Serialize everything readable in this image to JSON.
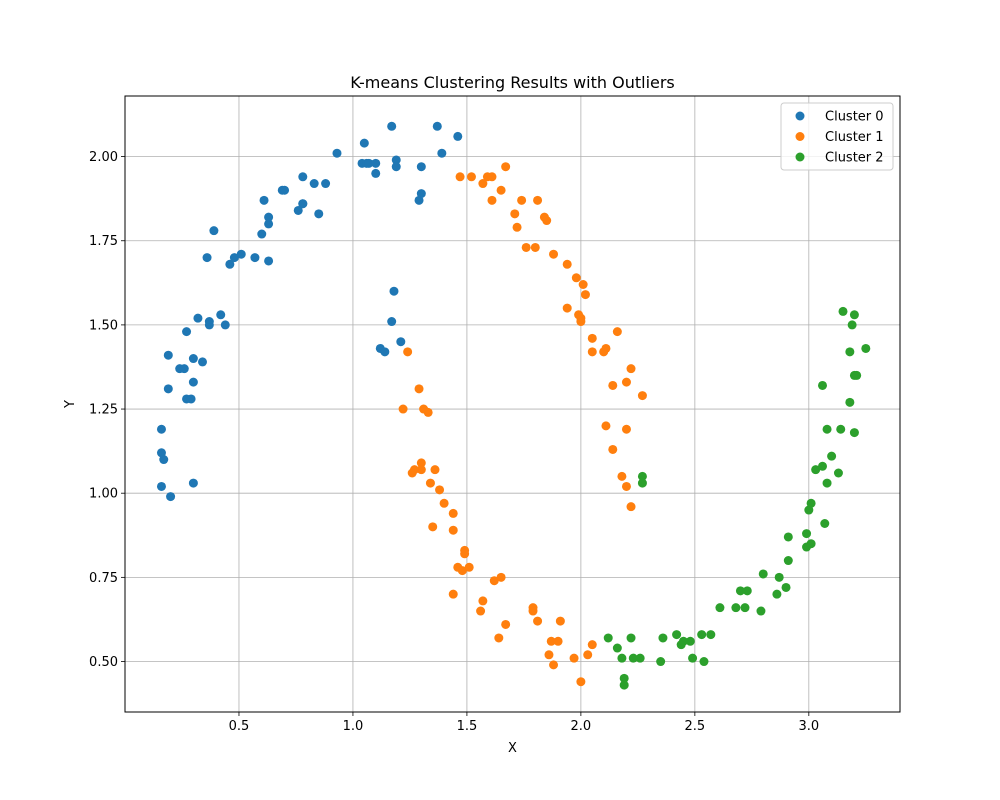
{
  "chart_data": {
    "type": "scatter",
    "title": "K-means Clustering Results with Outliers",
    "xlabel": "X",
    "ylabel": "Y",
    "xlim": [
      0.0,
      3.4
    ],
    "ylim": [
      0.35,
      2.18
    ],
    "xticks": [
      0.5,
      1.0,
      1.5,
      2.0,
      2.5,
      3.0
    ],
    "xtick_labels": [
      "0.5",
      "1.0",
      "1.5",
      "2.0",
      "2.5",
      "3.0"
    ],
    "yticks": [
      0.5,
      0.75,
      1.0,
      1.25,
      1.5,
      1.75,
      2.0
    ],
    "ytick_labels": [
      "0.50",
      "0.75",
      "1.00",
      "1.25",
      "1.50",
      "1.75",
      "2.00"
    ],
    "grid": true,
    "legend_position": "top-right",
    "series": [
      {
        "name": "Cluster 0",
        "color": "#1f77b4",
        "points": [
          [
            0.16,
            1.02
          ],
          [
            0.17,
            1.1
          ],
          [
            0.16,
            1.12
          ],
          [
            0.16,
            1.19
          ],
          [
            0.2,
            0.99
          ],
          [
            0.3,
            1.03
          ],
          [
            0.19,
            1.31
          ],
          [
            0.19,
            1.41
          ],
          [
            0.24,
            1.37
          ],
          [
            0.26,
            1.37
          ],
          [
            0.27,
            1.28
          ],
          [
            0.29,
            1.28
          ],
          [
            0.3,
            1.33
          ],
          [
            0.3,
            1.4
          ],
          [
            0.34,
            1.39
          ],
          [
            0.27,
            1.48
          ],
          [
            0.32,
            1.52
          ],
          [
            0.37,
            1.51
          ],
          [
            0.37,
            1.5
          ],
          [
            0.42,
            1.53
          ],
          [
            0.44,
            1.5
          ],
          [
            0.36,
            1.7
          ],
          [
            0.46,
            1.68
          ],
          [
            0.48,
            1.7
          ],
          [
            0.51,
            1.71
          ],
          [
            0.57,
            1.7
          ],
          [
            0.63,
            1.69
          ],
          [
            0.39,
            1.78
          ],
          [
            0.6,
            1.77
          ],
          [
            0.63,
            1.8
          ],
          [
            0.63,
            1.82
          ],
          [
            0.61,
            1.87
          ],
          [
            0.69,
            1.9
          ],
          [
            0.7,
            1.9
          ],
          [
            0.76,
            1.84
          ],
          [
            0.78,
            1.86
          ],
          [
            0.78,
            1.86
          ],
          [
            0.78,
            1.94
          ],
          [
            0.83,
            1.92
          ],
          [
            0.85,
            1.83
          ],
          [
            0.88,
            1.92
          ],
          [
            0.93,
            2.01
          ],
          [
            1.04,
            1.98
          ],
          [
            1.06,
            1.98
          ],
          [
            1.07,
            1.98
          ],
          [
            1.1,
            1.95
          ],
          [
            1.1,
            1.98
          ],
          [
            1.05,
            2.04
          ],
          [
            1.17,
            2.09
          ],
          [
            1.19,
            1.99
          ],
          [
            1.19,
            1.97
          ],
          [
            1.29,
            1.87
          ],
          [
            1.3,
            1.89
          ],
          [
            1.3,
            1.97
          ],
          [
            1.37,
            2.09
          ],
          [
            1.39,
            2.01
          ],
          [
            1.46,
            2.06
          ],
          [
            1.17,
            1.51
          ],
          [
            1.18,
            1.6
          ],
          [
            1.21,
            1.45
          ],
          [
            1.12,
            1.43
          ],
          [
            1.14,
            1.42
          ]
        ]
      },
      {
        "name": "Cluster 1",
        "color": "#ff7f0e",
        "points": [
          [
            1.47,
            1.94
          ],
          [
            1.52,
            1.94
          ],
          [
            1.57,
            1.92
          ],
          [
            1.59,
            1.94
          ],
          [
            1.61,
            1.94
          ],
          [
            1.61,
            1.87
          ],
          [
            1.65,
            1.9
          ],
          [
            1.67,
            1.97
          ],
          [
            1.71,
            1.83
          ],
          [
            1.72,
            1.79
          ],
          [
            1.74,
            1.87
          ],
          [
            1.76,
            1.73
          ],
          [
            1.8,
            1.73
          ],
          [
            1.81,
            1.87
          ],
          [
            1.84,
            1.82
          ],
          [
            1.85,
            1.81
          ],
          [
            1.88,
            1.71
          ],
          [
            1.94,
            1.68
          ],
          [
            1.98,
            1.64
          ],
          [
            2.01,
            1.62
          ],
          [
            2.02,
            1.59
          ],
          [
            1.94,
            1.55
          ],
          [
            1.99,
            1.53
          ],
          [
            2.0,
            1.52
          ],
          [
            2.0,
            1.51
          ],
          [
            2.05,
            1.46
          ],
          [
            2.05,
            1.42
          ],
          [
            2.1,
            1.42
          ],
          [
            2.11,
            1.43
          ],
          [
            2.16,
            1.48
          ],
          [
            2.14,
            1.32
          ],
          [
            2.2,
            1.33
          ],
          [
            2.22,
            1.37
          ],
          [
            2.27,
            1.29
          ],
          [
            2.11,
            1.2
          ],
          [
            2.2,
            1.19
          ],
          [
            2.14,
            1.13
          ],
          [
            2.18,
            1.05
          ],
          [
            2.2,
            1.02
          ],
          [
            2.22,
            0.96
          ],
          [
            1.24,
            1.42
          ],
          [
            1.29,
            1.31
          ],
          [
            1.22,
            1.25
          ],
          [
            1.31,
            1.25
          ],
          [
            1.33,
            1.24
          ],
          [
            1.3,
            1.09
          ],
          [
            1.3,
            1.07
          ],
          [
            1.27,
            1.07
          ],
          [
            1.26,
            1.06
          ],
          [
            1.36,
            1.07
          ],
          [
            1.34,
            1.03
          ],
          [
            1.38,
            1.01
          ],
          [
            1.4,
            0.97
          ],
          [
            1.44,
            0.94
          ],
          [
            1.35,
            0.9
          ],
          [
            1.44,
            0.89
          ],
          [
            1.49,
            0.83
          ],
          [
            1.49,
            0.82
          ],
          [
            1.46,
            0.78
          ],
          [
            1.48,
            0.77
          ],
          [
            1.51,
            0.78
          ],
          [
            1.44,
            0.7
          ],
          [
            1.57,
            0.68
          ],
          [
            1.62,
            0.74
          ],
          [
            1.65,
            0.75
          ],
          [
            1.56,
            0.65
          ],
          [
            1.67,
            0.61
          ],
          [
            1.64,
            0.57
          ],
          [
            1.79,
            0.65
          ],
          [
            1.79,
            0.66
          ],
          [
            1.81,
            0.62
          ],
          [
            1.91,
            0.62
          ],
          [
            1.87,
            0.56
          ],
          [
            1.9,
            0.56
          ],
          [
            1.86,
            0.52
          ],
          [
            1.88,
            0.49
          ],
          [
            1.97,
            0.51
          ],
          [
            2.03,
            0.52
          ],
          [
            2.05,
            0.55
          ],
          [
            2.0,
            0.44
          ]
        ]
      },
      {
        "name": "Cluster 2",
        "color": "#2ca02c",
        "points": [
          [
            2.12,
            0.57
          ],
          [
            2.16,
            0.54
          ],
          [
            2.18,
            0.51
          ],
          [
            2.22,
            0.57
          ],
          [
            2.23,
            0.51
          ],
          [
            2.26,
            0.51
          ],
          [
            2.19,
            0.45
          ],
          [
            2.19,
            0.43
          ],
          [
            2.35,
            0.5
          ],
          [
            2.36,
            0.57
          ],
          [
            2.42,
            0.58
          ],
          [
            2.44,
            0.55
          ],
          [
            2.45,
            0.56
          ],
          [
            2.48,
            0.56
          ],
          [
            2.49,
            0.51
          ],
          [
            2.53,
            0.58
          ],
          [
            2.54,
            0.5
          ],
          [
            2.57,
            0.58
          ],
          [
            2.61,
            0.66
          ],
          [
            2.68,
            0.66
          ],
          [
            2.7,
            0.71
          ],
          [
            2.72,
            0.66
          ],
          [
            2.73,
            0.71
          ],
          [
            2.79,
            0.65
          ],
          [
            2.8,
            0.76
          ],
          [
            2.86,
            0.7
          ],
          [
            2.87,
            0.75
          ],
          [
            2.9,
            0.72
          ],
          [
            2.91,
            0.8
          ],
          [
            2.91,
            0.87
          ],
          [
            2.99,
            0.84
          ],
          [
            2.99,
            0.88
          ],
          [
            3.0,
            0.95
          ],
          [
            3.01,
            0.97
          ],
          [
            3.01,
            0.85
          ],
          [
            3.07,
            0.91
          ],
          [
            3.03,
            1.07
          ],
          [
            3.06,
            1.08
          ],
          [
            3.08,
            1.03
          ],
          [
            3.1,
            1.11
          ],
          [
            3.13,
            1.06
          ],
          [
            3.08,
            1.19
          ],
          [
            3.14,
            1.19
          ],
          [
            3.2,
            1.18
          ],
          [
            3.06,
            1.32
          ],
          [
            3.18,
            1.27
          ],
          [
            3.2,
            1.35
          ],
          [
            3.21,
            1.35
          ],
          [
            3.18,
            1.42
          ],
          [
            3.15,
            1.54
          ],
          [
            3.19,
            1.5
          ],
          [
            3.2,
            1.53
          ],
          [
            3.25,
            1.43
          ],
          [
            2.27,
            1.05
          ],
          [
            2.27,
            1.03
          ]
        ]
      }
    ]
  }
}
